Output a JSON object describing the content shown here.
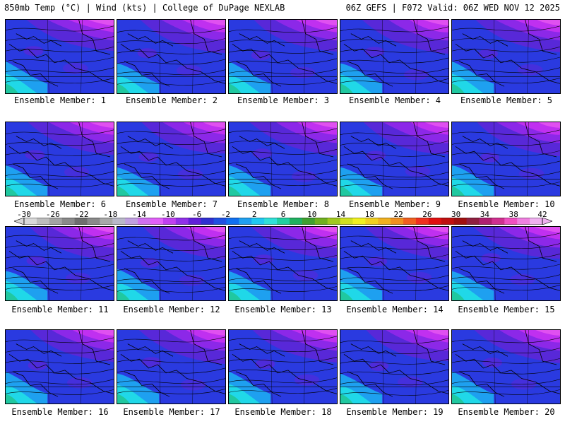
{
  "header": {
    "left": "850mb Temp (°C) | Wind (kts) | College of DuPage NEXLAB",
    "right": "06Z GEFS | F072 Valid: 06Z WED NOV 12 2025"
  },
  "panels": [
    {
      "label": "Ensemble Member: 1"
    },
    {
      "label": "Ensemble Member: 2"
    },
    {
      "label": "Ensemble Member: 3"
    },
    {
      "label": "Ensemble Member: 4"
    },
    {
      "label": "Ensemble Member: 5"
    },
    {
      "label": "Ensemble Member: 6"
    },
    {
      "label": "Ensemble Member: 7"
    },
    {
      "label": "Ensemble Member: 8"
    },
    {
      "label": "Ensemble Member: 9"
    },
    {
      "label": "Ensemble Member: 10"
    },
    {
      "label": "Ensemble Member: 11"
    },
    {
      "label": "Ensemble Member: 12"
    },
    {
      "label": "Ensemble Member: 13"
    },
    {
      "label": "Ensemble Member: 14"
    },
    {
      "label": "Ensemble Member: 15"
    },
    {
      "label": "Ensemble Member: 16"
    },
    {
      "label": "Ensemble Member: 17"
    },
    {
      "label": "Ensemble Member: 18"
    },
    {
      "label": "Ensemble Member: 19"
    },
    {
      "label": "Ensemble Member: 20"
    }
  ],
  "colorbar": {
    "ticks": [
      "-30",
      "-26",
      "-22",
      "-18",
      "-14",
      "-10",
      "-6",
      "-2",
      "2",
      "6",
      "10",
      "14",
      "18",
      "22",
      "26",
      "30",
      "34",
      "38",
      "42"
    ],
    "colors": [
      "#d8d8d8",
      "#bdbdbd",
      "#a3a3a3",
      "#8a8a8a",
      "#6f6f6f",
      "#8a8a8a",
      "#a8a8a8",
      "#b9b9c9",
      "#c0a0e0",
      "#d070f0",
      "#e060f8",
      "#c040f0",
      "#9030e8",
      "#6020d8",
      "#3030d0",
      "#2050e0",
      "#1070f0",
      "#20a0f0",
      "#20c8f0",
      "#30e0d8",
      "#20d0a0",
      "#20b060",
      "#40a030",
      "#70b020",
      "#a0c820",
      "#d0e020",
      "#f0f020",
      "#f0d020",
      "#f0b020",
      "#f09020",
      "#f06020",
      "#f03020",
      "#e01010",
      "#c01010",
      "#a01010",
      "#902040",
      "#b02070",
      "#d03090",
      "#f050c0",
      "#f080e0",
      "#f0b0f0"
    ]
  },
  "palette": {
    "cyan": "#20d8e8",
    "teal": "#20c8a0",
    "skyblue": "#1ea0f0",
    "blue": "#2a3ae0",
    "violet": "#5828d8",
    "purple": "#8c28e8",
    "magenta": "#c030f0",
    "pink": "#e050f0",
    "lightpink": "#f080f0",
    "map_lines": "#000000"
  }
}
